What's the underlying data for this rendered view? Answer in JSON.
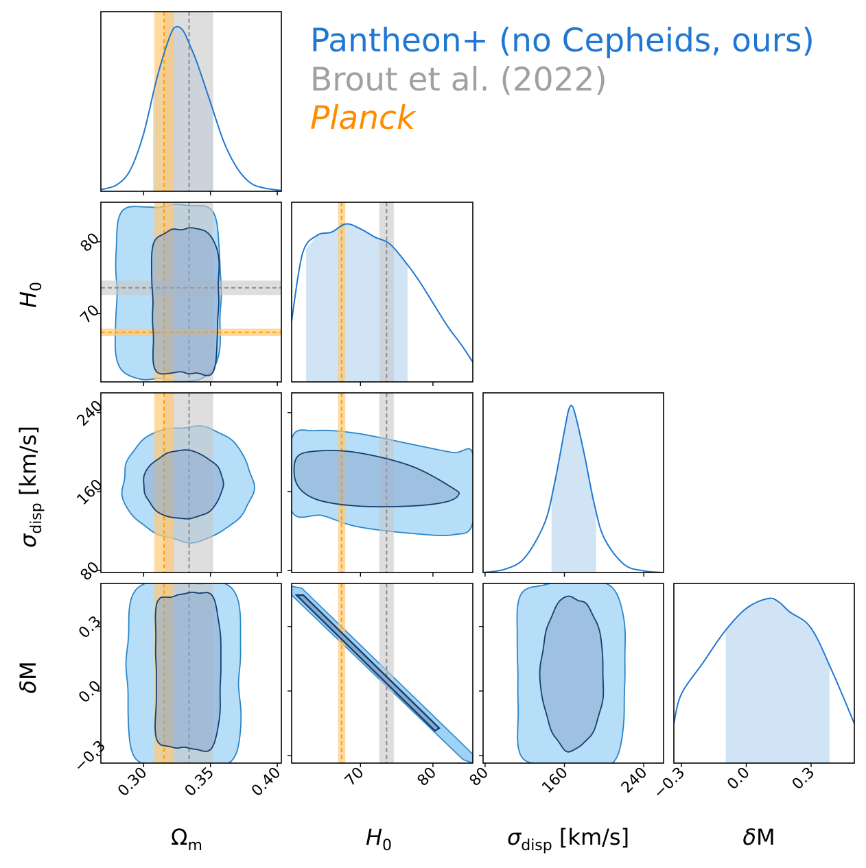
{
  "legend": {
    "ours": "Pantheon+ (no Cepheids, ours)",
    "brout": "Brout et al. (2022)",
    "planck": "Planck"
  },
  "colors": {
    "ours": "#1f77d2",
    "ours_fill": "#9fd3f5",
    "ours_inner": "#a9bcd6",
    "ours_edge": "#1f5a94",
    "brout": "#8c8c8c",
    "brout_band": "#c8c8c8",
    "planck": "#ff9f00",
    "planck_band": "#ffc975"
  },
  "axes_labels": {
    "om": "Ωm",
    "h0": "H0",
    "sigma": "σdisp [km/s]",
    "dm": "δM"
  },
  "chart_data": {
    "type": "corner",
    "parameters": [
      {
        "name": "Ωm",
        "range": [
          0.268,
          0.403
        ],
        "ticks": [
          0.3,
          0.35,
          0.4
        ],
        "tick_labels": [
          "0.30",
          "0.35",
          "0.40"
        ]
      },
      {
        "name": "H0",
        "range": [
          60.5,
          85.5
        ],
        "ticks": [
          70,
          80
        ],
        "tick_labels": [
          "70",
          "80"
        ]
      },
      {
        "name": "σdisp [km/s]",
        "range": [
          78,
          260
        ],
        "ticks": [
          80,
          160,
          240
        ],
        "tick_labels": [
          "80",
          "160",
          "240"
        ]
      },
      {
        "name": "δM",
        "range": [
          -0.335,
          0.5
        ],
        "ticks": [
          -0.3,
          0.0,
          0.3
        ],
        "tick_labels": [
          "−0.3",
          "0.0",
          "0.3"
        ]
      }
    ],
    "reference_lines": {
      "brout": {
        "om": 0.334,
        "om_band": [
          0.316,
          0.352
        ],
        "h0": 73.6,
        "h0_band": [
          72.6,
          74.6
        ]
      },
      "planck": {
        "om": 0.3153,
        "om_band": [
          0.308,
          0.3226
        ],
        "h0": 67.4,
        "h0_band": [
          66.9,
          67.9
        ]
      }
    },
    "marginals": {
      "om": {
        "x": [
          0.268,
          0.28,
          0.29,
          0.3,
          0.31,
          0.32,
          0.325,
          0.33,
          0.335,
          0.34,
          0.35,
          0.36,
          0.37,
          0.38,
          0.39,
          0.403
        ],
        "density": [
          0.01,
          0.04,
          0.13,
          0.35,
          0.69,
          0.95,
          1.0,
          0.97,
          0.88,
          0.78,
          0.54,
          0.3,
          0.14,
          0.05,
          0.02,
          0.005
        ],
        "interval": [
          0.307,
          0.352
        ]
      },
      "h0": {
        "x": [
          60.5,
          62,
          64,
          66,
          68,
          70,
          72,
          74,
          76,
          78,
          80,
          82,
          84,
          85.5
        ],
        "density": [
          0.37,
          0.78,
          0.89,
          0.91,
          0.96,
          0.93,
          0.88,
          0.84,
          0.74,
          0.62,
          0.48,
          0.34,
          0.22,
          0.12
        ],
        "interval": [
          62.5,
          76.5
        ]
      },
      "sigma": {
        "x": [
          78,
          100,
          120,
          140,
          150,
          160,
          165,
          170,
          180,
          190,
          200,
          220,
          240,
          260
        ],
        "density": [
          0.0,
          0.02,
          0.09,
          0.3,
          0.54,
          0.86,
          1.0,
          0.98,
          0.72,
          0.42,
          0.21,
          0.05,
          0.01,
          0.0
        ],
        "interval": [
          147,
          192
        ]
      },
      "dm": {
        "x": [
          -0.335,
          -0.3,
          -0.2,
          -0.1,
          0.0,
          0.1,
          0.15,
          0.2,
          0.3,
          0.4,
          0.5
        ],
        "density": [
          0.24,
          0.42,
          0.61,
          0.8,
          0.94,
          1.0,
          0.98,
          0.92,
          0.82,
          0.55,
          0.24
        ],
        "interval": [
          -0.095,
          0.385
        ]
      }
    },
    "contours_note": "2D panels show 68% (inner) and 95% (outer) credible regions"
  }
}
